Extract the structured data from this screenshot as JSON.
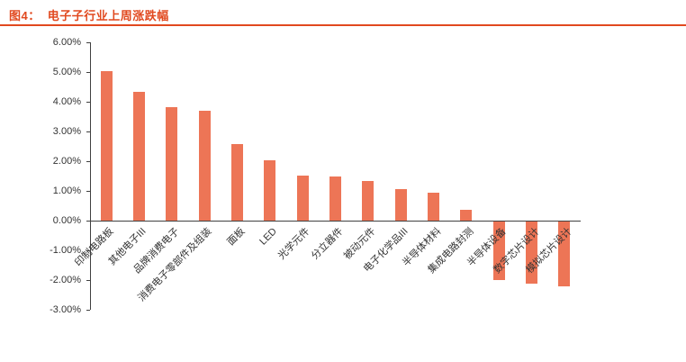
{
  "figure": {
    "label_prefix": "图4：",
    "title": "电子子行业上周涨跌幅",
    "accent_color": "#E1491F"
  },
  "chart_data": {
    "type": "bar",
    "title": "电子子行业上周涨跌幅",
    "categories": [
      "印制电路板",
      "其他电子III",
      "品牌消费电子",
      "消费电子零部件及组装",
      "面板",
      "LED",
      "光学元件",
      "分立器件",
      "被动元件",
      "电子化学品III",
      "半导体材料",
      "集成电路封测",
      "半导体设备",
      "数字芯片设计",
      "模拟芯片设计"
    ],
    "values": [
      5.03,
      4.33,
      3.82,
      3.7,
      2.57,
      2.02,
      1.51,
      1.47,
      1.33,
      1.06,
      0.94,
      0.36,
      -1.97,
      -2.09,
      -2.18
    ],
    "unit": "%",
    "ylim": [
      -3,
      6
    ],
    "ytick_step": 1,
    "ytick_labels": [
      "6.00%",
      "5.00%",
      "4.00%",
      "3.00%",
      "2.00%",
      "1.00%",
      "0.00%",
      "-1.00%",
      "-2.00%",
      "-3.00%"
    ],
    "xlabel": "",
    "ylabel": "",
    "grid": false,
    "legend_position": "none",
    "bar_color": "#ED7556"
  }
}
